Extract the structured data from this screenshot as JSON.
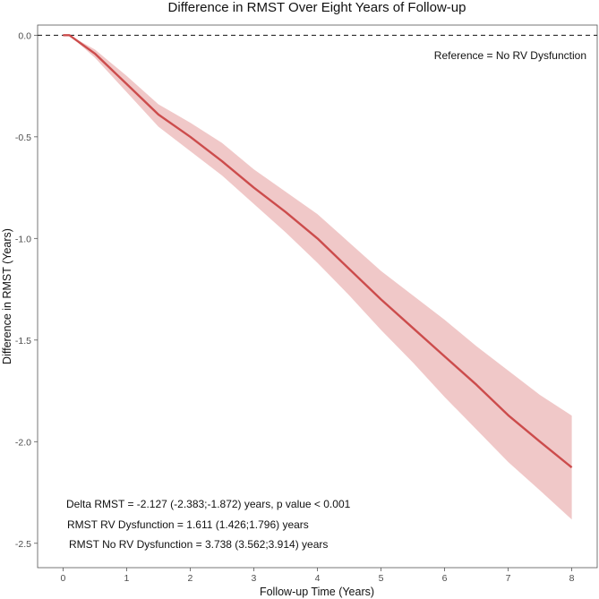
{
  "chart_data": {
    "type": "line",
    "title": "Difference in RMST Over Eight Years of Follow-up",
    "xlabel": "Follow-up Time (Years)",
    "ylabel": "Difference in RMST (Years)",
    "xlim": [
      -0.4,
      8.4
    ],
    "ylim": [
      -2.62,
      0.05
    ],
    "xticks": [
      0,
      1,
      2,
      3,
      4,
      5,
      6,
      7,
      8
    ],
    "xtick_labels": [
      "0",
      "1",
      "2",
      "3",
      "4",
      "5",
      "6",
      "7",
      "8"
    ],
    "yticks": [
      0.0,
      -0.5,
      -1.0,
      -1.5,
      -2.0,
      -2.5
    ],
    "ytick_labels": [
      "0.0",
      "-0.5",
      "-1.0",
      "-1.5",
      "-2.0",
      "-2.5"
    ],
    "reference_line": {
      "y": 0.0,
      "style": "dashed",
      "label": "Reference = No RV Dysfunction"
    },
    "series": [
      {
        "name": "Difference in RMST",
        "color": "#cc4c4c",
        "band_color": "#f0c8c8",
        "x": [
          0,
          0.1,
          0.5,
          1.0,
          1.5,
          2.0,
          2.5,
          3.0,
          3.5,
          4.0,
          4.5,
          5.0,
          5.5,
          6.0,
          6.5,
          7.0,
          7.5,
          8.0
        ],
        "y": [
          0,
          0,
          -0.09,
          -0.24,
          -0.39,
          -0.5,
          -0.62,
          -0.75,
          -0.87,
          -1.0,
          -1.15,
          -1.3,
          -1.44,
          -1.58,
          -1.72,
          -1.87,
          -2.0,
          -2.127
        ],
        "lower": [
          0,
          0,
          -0.11,
          -0.28,
          -0.45,
          -0.57,
          -0.69,
          -0.83,
          -0.97,
          -1.12,
          -1.28,
          -1.45,
          -1.61,
          -1.78,
          -1.94,
          -2.1,
          -2.24,
          -2.383
        ],
        "upper": [
          0,
          0,
          -0.07,
          -0.2,
          -0.34,
          -0.43,
          -0.53,
          -0.66,
          -0.77,
          -0.88,
          -1.02,
          -1.16,
          -1.28,
          -1.4,
          -1.53,
          -1.65,
          -1.77,
          -1.872
        ]
      }
    ],
    "annotations": [
      "Delta RMST = -2.127 (-2.383;-1.872) years, p value < 0.001",
      "RMST RV Dysfunction = 1.611 (1.426;1.796) years",
      "RMST No RV Dysfunction = 3.738 (3.562;3.914) years"
    ]
  }
}
